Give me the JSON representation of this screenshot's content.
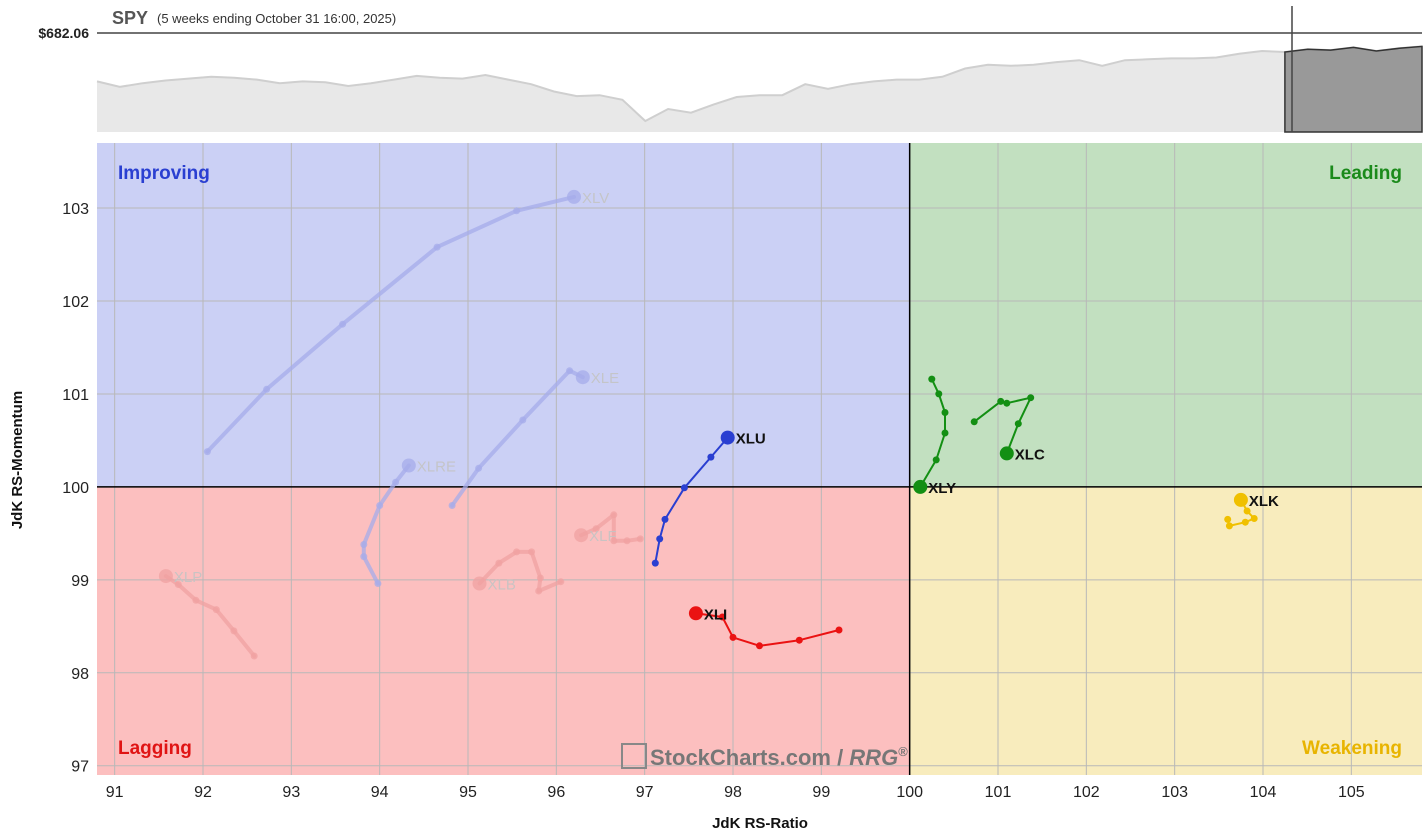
{
  "header": {
    "symbol": "SPY",
    "period": "(5 weeks ending October 31 16:00, 2025)",
    "price_label": "$682.06"
  },
  "quadrants": {
    "improving": "Improving",
    "leading": "Leading",
    "lagging": "Lagging",
    "weakening": "Weakening"
  },
  "watermark": {
    "brand": "StockCharts.com",
    "sep": " / ",
    "product": "RRG",
    "reg": "®"
  },
  "colors": {
    "improving_bg": "#cbd0f5",
    "leading_bg": "#c2e0c0",
    "lagging_bg": "#fcbfbf",
    "weakening_bg": "#f8ecbd",
    "improving_text": "#2a3fd1",
    "leading_text": "#1b8a1b",
    "lagging_text": "#e01414",
    "weakening_text": "#e8b400",
    "spy_area": "#e8e8e8",
    "spy_line": "#cfcfcf",
    "spy_recent": "#999999"
  },
  "spy_strip": {
    "ymin": 0,
    "ymax": 100,
    "values": [
      55,
      49,
      53,
      56,
      58,
      60,
      59,
      57,
      53,
      55,
      54,
      50,
      53,
      57,
      61,
      59,
      58,
      62,
      57,
      52,
      44,
      39,
      40,
      35,
      12,
      25,
      21,
      30,
      38,
      40,
      40,
      52,
      47,
      52,
      55,
      57,
      57,
      60,
      69,
      73,
      72,
      73,
      76,
      78,
      72,
      78,
      79,
      80,
      80,
      81,
      85,
      88,
      87,
      90,
      89,
      92,
      88,
      91,
      93
    ],
    "recent_start_index": 52
  },
  "chart_data": {
    "type": "scatter",
    "xlabel": "JdK RS-Ratio",
    "ylabel": "JdK RS-Momentum",
    "xlim": [
      90.8,
      105.8
    ],
    "ylim": [
      96.9,
      103.7
    ],
    "xticks": [
      91,
      92,
      93,
      94,
      95,
      96,
      97,
      98,
      99,
      100,
      101,
      102,
      103,
      104,
      105
    ],
    "yticks": [
      97,
      98,
      99,
      100,
      101,
      102,
      103
    ],
    "center": [
      100,
      100
    ],
    "series": [
      {
        "name": "XLV",
        "color": "#a5acea",
        "faded": true,
        "points": [
          [
            92.05,
            100.38
          ],
          [
            92.72,
            101.05
          ],
          [
            93.58,
            101.75
          ],
          [
            94.65,
            102.58
          ],
          [
            95.55,
            102.97
          ],
          [
            96.2,
            103.12
          ]
        ]
      },
      {
        "name": "XLE",
        "color": "#a5acea",
        "faded": true,
        "points": [
          [
            94.82,
            99.8
          ],
          [
            95.12,
            100.2
          ],
          [
            95.62,
            100.72
          ],
          [
            96.15,
            101.25
          ],
          [
            96.3,
            101.18
          ]
        ]
      },
      {
        "name": "XLRE",
        "color": "#a5acea",
        "faded": true,
        "points": [
          [
            93.98,
            98.96
          ],
          [
            93.82,
            99.25
          ],
          [
            93.82,
            99.38
          ],
          [
            94.0,
            99.8
          ],
          [
            94.18,
            100.05
          ],
          [
            94.33,
            100.23
          ]
        ]
      },
      {
        "name": "XLP",
        "color": "#f0a2a2",
        "faded": true,
        "points": [
          [
            92.58,
            98.18
          ],
          [
            92.35,
            98.45
          ],
          [
            92.15,
            98.68
          ],
          [
            91.92,
            98.78
          ],
          [
            91.72,
            98.95
          ],
          [
            91.58,
            99.04
          ]
        ]
      },
      {
        "name": "XLB",
        "color": "#f0a2a2",
        "faded": true,
        "points": [
          [
            96.05,
            98.98
          ],
          [
            95.8,
            98.88
          ],
          [
            95.82,
            99.02
          ],
          [
            95.72,
            99.3
          ],
          [
            95.55,
            99.3
          ],
          [
            95.35,
            99.18
          ],
          [
            95.13,
            98.96
          ]
        ]
      },
      {
        "name": "XLF",
        "color": "#f0a2a2",
        "faded": true,
        "points": [
          [
            96.95,
            99.44
          ],
          [
            96.8,
            99.42
          ],
          [
            96.65,
            99.42
          ],
          [
            96.65,
            99.7
          ],
          [
            96.45,
            99.55
          ],
          [
            96.28,
            99.48
          ]
        ]
      },
      {
        "name": "XLU",
        "color": "#2a3fd1",
        "faded": false,
        "points": [
          [
            97.12,
            99.18
          ],
          [
            97.17,
            99.44
          ],
          [
            97.23,
            99.65
          ],
          [
            97.45,
            99.99
          ],
          [
            97.75,
            100.32
          ],
          [
            97.94,
            100.53
          ]
        ]
      },
      {
        "name": "XLI",
        "color": "#ea1212",
        "faded": false,
        "points": [
          [
            99.2,
            98.46
          ],
          [
            98.75,
            98.35
          ],
          [
            98.3,
            98.29
          ],
          [
            98.0,
            98.38
          ],
          [
            97.88,
            98.6
          ],
          [
            97.58,
            98.64
          ]
        ]
      },
      {
        "name": "XLY",
        "color": "#138f13",
        "faded": false,
        "points": [
          [
            100.25,
            101.16
          ],
          [
            100.33,
            101.0
          ],
          [
            100.4,
            100.8
          ],
          [
            100.4,
            100.58
          ],
          [
            100.3,
            100.29
          ],
          [
            100.12,
            100.0
          ]
        ]
      },
      {
        "name": "XLC",
        "color": "#138f13",
        "faded": false,
        "points": [
          [
            100.73,
            100.7
          ],
          [
            101.03,
            100.92
          ],
          [
            101.1,
            100.9
          ],
          [
            101.37,
            100.96
          ],
          [
            101.23,
            100.68
          ],
          [
            101.1,
            100.36
          ]
        ]
      },
      {
        "name": "XLK",
        "color": "#f0c000",
        "faded": false,
        "points": [
          [
            103.6,
            99.65
          ],
          [
            103.62,
            99.58
          ],
          [
            103.8,
            99.62
          ],
          [
            103.9,
            99.66
          ],
          [
            103.82,
            99.74
          ],
          [
            103.75,
            99.86
          ]
        ]
      }
    ]
  }
}
